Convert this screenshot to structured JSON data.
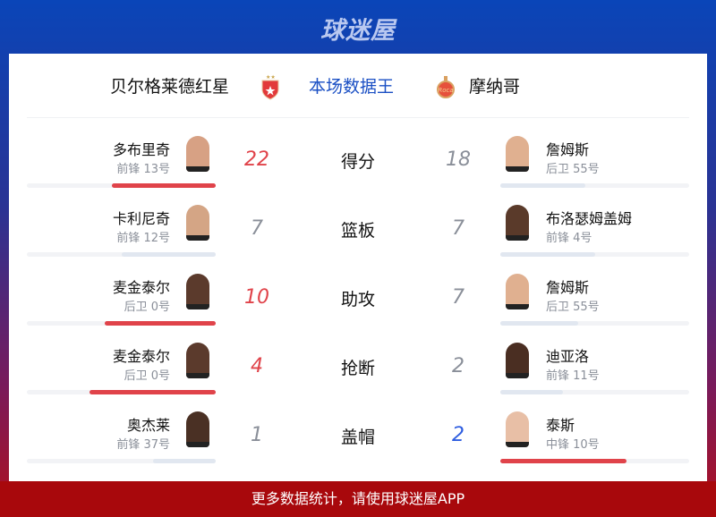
{
  "app": {
    "logo": "球迷屋"
  },
  "header": {
    "home_team": "贝尔格莱德红星",
    "title": "本场数据王",
    "away_team": "摩纳哥"
  },
  "colors": {
    "win": "#e0434a",
    "lose": "#e1e7f0",
    "home_win_num": "#e0434a",
    "away_win_num": "#2f5ee0",
    "title": "#1a4fc4"
  },
  "rows": [
    {
      "stat": "得分",
      "home": {
        "name": "多布里奇",
        "info": "前锋 13号",
        "value": 22,
        "share": 0.55
      },
      "away": {
        "name": "詹姆斯",
        "info": "后卫 55号",
        "value": 18,
        "share": 0.45
      },
      "winner": "home"
    },
    {
      "stat": "篮板",
      "home": {
        "name": "卡利尼奇",
        "info": "前锋 12号",
        "value": 7,
        "share": 0.5
      },
      "away": {
        "name": "布洛瑟姆盖姆",
        "info": "前锋 4号",
        "value": 7,
        "share": 0.5
      },
      "winner": "none"
    },
    {
      "stat": "助攻",
      "home": {
        "name": "麦金泰尔",
        "info": "后卫 0号",
        "value": 10,
        "share": 0.59
      },
      "away": {
        "name": "詹姆斯",
        "info": "后卫 55号",
        "value": 7,
        "share": 0.41
      },
      "winner": "home"
    },
    {
      "stat": "抢断",
      "home": {
        "name": "麦金泰尔",
        "info": "后卫 0号",
        "value": 4,
        "share": 0.67
      },
      "away": {
        "name": "迪亚洛",
        "info": "前锋 11号",
        "value": 2,
        "share": 0.33
      },
      "winner": "home"
    },
    {
      "stat": "盖帽",
      "home": {
        "name": "奥杰莱",
        "info": "前锋 37号",
        "value": 1,
        "share": 0.33
      },
      "away": {
        "name": "泰斯",
        "info": "中锋 10号",
        "value": 2,
        "share": 0.67
      },
      "winner": "away"
    }
  ],
  "footer": {
    "text": "更多数据统计，请使用球迷屋APP"
  }
}
